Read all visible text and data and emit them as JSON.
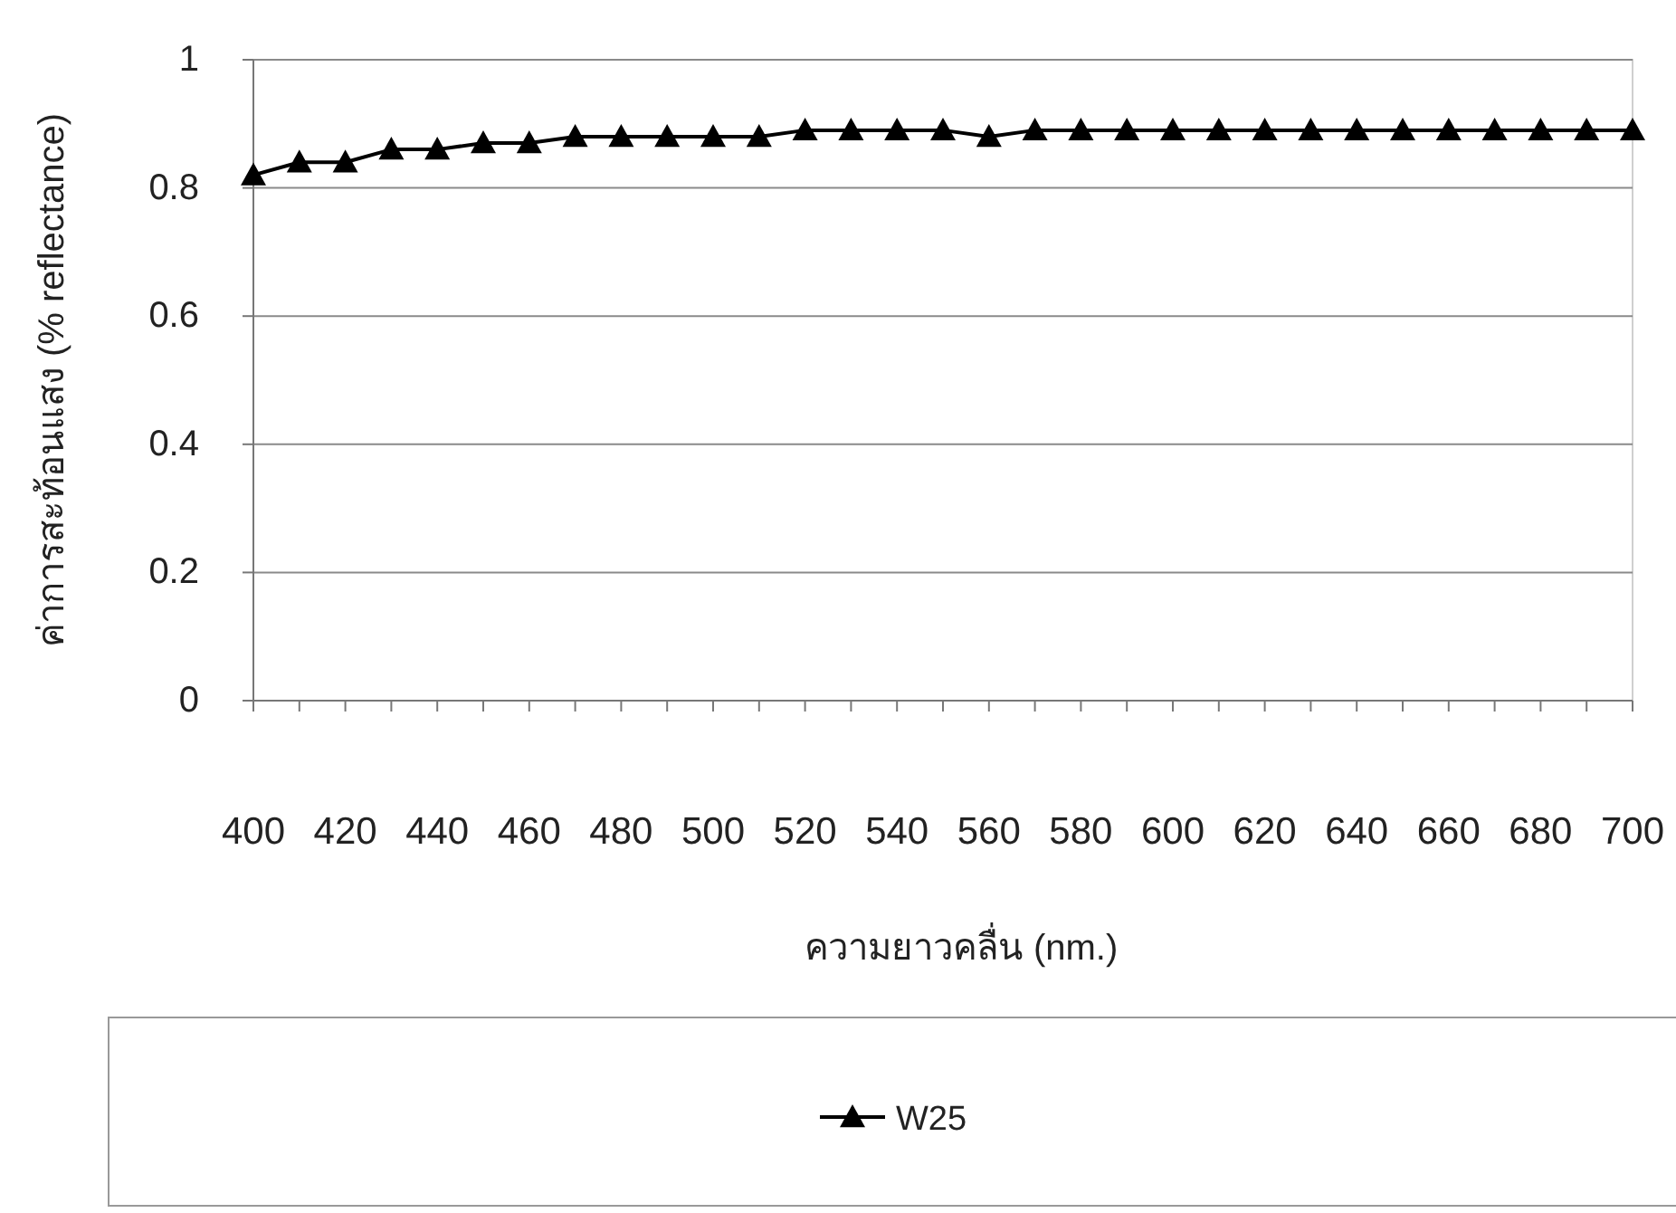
{
  "chart_data": {
    "type": "line",
    "xlabel": "ความยาวคลื่น (nm.)",
    "ylabel": "ค่าการสะท้อนแสง (% reflectance)",
    "x": [
      400,
      410,
      420,
      430,
      440,
      450,
      460,
      470,
      480,
      490,
      500,
      510,
      520,
      530,
      540,
      550,
      560,
      570,
      580,
      590,
      600,
      610,
      620,
      630,
      640,
      650,
      660,
      670,
      680,
      690,
      700
    ],
    "series": [
      {
        "name": "W25",
        "color": "#000000",
        "values": [
          0.82,
          0.84,
          0.84,
          0.86,
          0.86,
          0.87,
          0.87,
          0.88,
          0.88,
          0.88,
          0.88,
          0.88,
          0.89,
          0.89,
          0.89,
          0.89,
          0.88,
          0.89,
          0.89,
          0.89,
          0.89,
          0.89,
          0.89,
          0.89,
          0.89,
          0.89,
          0.89,
          0.89,
          0.89,
          0.89,
          0.89
        ]
      }
    ],
    "xlim": [
      400,
      700
    ],
    "xticks": [
      400,
      {
        "value": 410,
        "label": null
      },
      420,
      {
        "value": 430,
        "label": null
      },
      440,
      {
        "value": 450,
        "label": null
      },
      460,
      {
        "value": 470,
        "label": null
      },
      480,
      {
        "value": 490,
        "label": null
      },
      500,
      {
        "value": 510,
        "label": null
      },
      520,
      {
        "value": 530,
        "label": null
      },
      540,
      {
        "value": 550,
        "label": null
      },
      560,
      {
        "value": 570,
        "label": null
      },
      580,
      {
        "value": 590,
        "label": null
      },
      600,
      {
        "value": 610,
        "label": null
      },
      620,
      {
        "value": 630,
        "label": null
      },
      640,
      {
        "value": 650,
        "label": null
      },
      660,
      {
        "value": 670,
        "label": null
      },
      680,
      {
        "value": 690,
        "label": null
      },
      700
    ],
    "ylim": [
      0,
      1
    ],
    "yticks": [
      0,
      0.2,
      0.4,
      0.6,
      0.8,
      1
    ],
    "grid": "y",
    "legend": "bottom",
    "marker": "triangle",
    "line_style": "solid"
  }
}
